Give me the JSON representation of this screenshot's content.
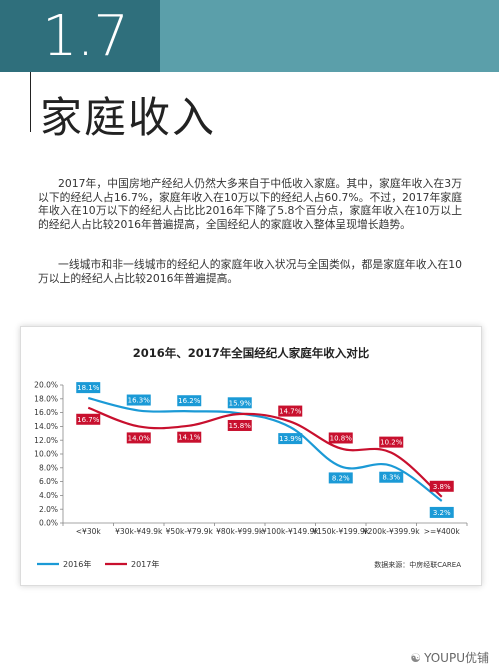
{
  "section": {
    "number": "1.7",
    "title": "家庭收入"
  },
  "paragraphs": [
    "2017年，中国房地产经纪人仍然大多来自于中低收入家庭。其中，家庭年收入在3万以下的经纪人占16.7%，家庭年收入在10万以下的经纪人占60.7%。不过，2017年家庭年收入在10万以下的经纪人占比比2016年下降了5.8个百分点，家庭年收入在10万以上的经纪人占比较2016年普遍提高，全国经纪人的家庭收入整体呈现增长趋势。",
    "一线城市和非一线城市的经纪人的家庭年收入状况与全国类似，都是家庭年收入在10万以上的经纪人占比较2016年普遍提高。"
  ],
  "chart_data": {
    "type": "line",
    "title": "2016年、2017年全国经纪人家庭年收入对比",
    "categories": [
      "<¥30k",
      "¥30k-¥49.9k",
      "¥50k-¥79.9k",
      "¥80k-¥99.9k",
      "¥100k-¥149.9k",
      "¥150k-¥199.9k",
      "¥200k-¥399.9k",
      ">=¥400k"
    ],
    "series": [
      {
        "name": "2016年",
        "color": "#1b9ad6",
        "values": [
          18.1,
          16.3,
          16.2,
          15.9,
          13.9,
          8.2,
          8.3,
          3.2
        ],
        "labels": [
          "18.1%",
          "16.3%",
          "16.2%",
          "15.9%",
          "13.9%",
          "8.2%",
          "8.3%",
          "3.2%"
        ]
      },
      {
        "name": "2017年",
        "color": "#c8102e",
        "values": [
          16.7,
          14.0,
          14.1,
          15.8,
          14.7,
          10.8,
          10.2,
          3.8
        ],
        "labels": [
          "16.7%",
          "14.0%",
          "14.1%",
          "15.8%",
          "14.7%",
          "10.8%",
          "10.2%",
          "3.8%"
        ]
      }
    ],
    "yticks": [
      "0.0%",
      "2.0%",
      "4.0%",
      "6.0%",
      "8.0%",
      "10.0%",
      "12.0%",
      "14.0%",
      "16.0%",
      "18.0%",
      "20.0%"
    ],
    "ylim": [
      0,
      20
    ],
    "grid": false,
    "legend_position": "bottom-left",
    "source": "数据来源：中房经联CAREA"
  },
  "watermark": "YOUPU优铺"
}
